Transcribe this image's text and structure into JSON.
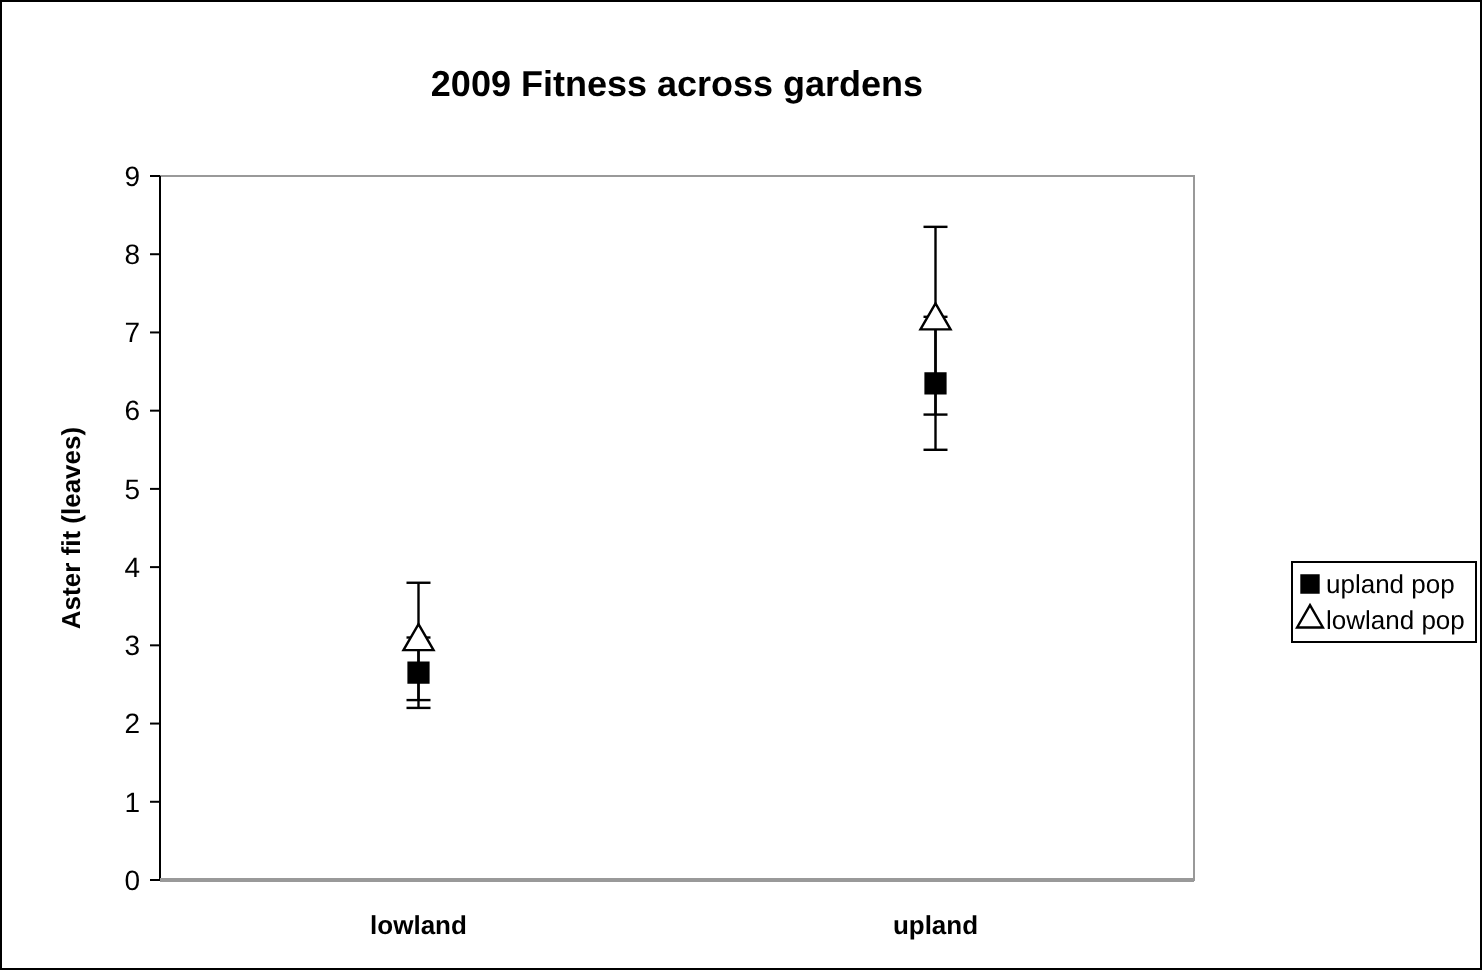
{
  "chart_data": {
    "type": "scatter",
    "title": "2009 Fitness across gardens",
    "ylabel": "Aster fit (leaves)",
    "categories": [
      "lowland",
      "upland"
    ],
    "series": [
      {
        "name": "upland pop",
        "color": "#000000",
        "marker": "square",
        "values": [
          2.65,
          6.35
        ],
        "errors": [
          0.45,
          0.85
        ]
      },
      {
        "name": "lowland pop",
        "color": "#ffffff",
        "marker": "triangle",
        "values": [
          3.05,
          7.15
        ],
        "errors": [
          0.75,
          1.2
        ]
      }
    ],
    "ylim": [
      0,
      9
    ],
    "yticks": [
      0,
      1,
      2,
      3,
      4,
      5,
      6,
      7,
      8,
      9
    ],
    "grid": false,
    "legend": "right"
  }
}
